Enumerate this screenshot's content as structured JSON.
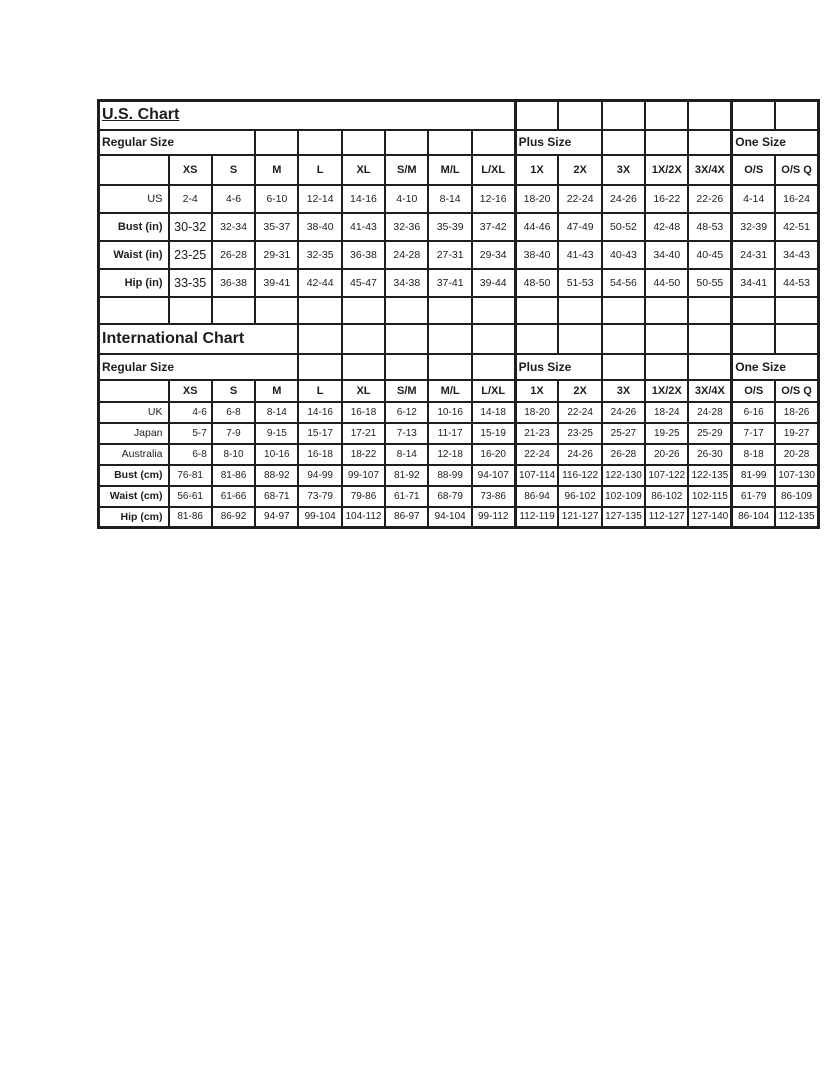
{
  "size_columns": [
    "XS",
    "S",
    "M",
    "L",
    "XL",
    "S/M",
    "M/L",
    "L/XL",
    "1X",
    "2X",
    "3X",
    "1X/2X",
    "3X/4X",
    "O/S",
    "O/S Q"
  ],
  "us_chart": {
    "title": "U.S. Chart",
    "group_labels": {
      "regular": "Regular Size",
      "plus": "Plus Size",
      "one": "One Size"
    },
    "rows": [
      {
        "label": "US",
        "kind": "region",
        "values": [
          "2-4",
          "4-6",
          "6-10",
          "12-14",
          "14-16",
          "4-10",
          "8-14",
          "12-16",
          "18-20",
          "22-24",
          "24-26",
          "16-22",
          "22-26",
          "4-14",
          "16-24"
        ]
      },
      {
        "label": "Bust (in)",
        "kind": "measurement",
        "values": [
          "30-32",
          "32-34",
          "35-37",
          "38-40",
          "41-43",
          "32-36",
          "35-39",
          "37-42",
          "44-46",
          "47-49",
          "50-52",
          "42-48",
          "48-53",
          "32-39",
          "42-51"
        ]
      },
      {
        "label": "Waist (in)",
        "kind": "measurement",
        "values": [
          "23-25",
          "26-28",
          "29-31",
          "32-35",
          "36-38",
          "24-28",
          "27-31",
          "29-34",
          "38-40",
          "41-43",
          "40-43",
          "34-40",
          "40-45",
          "24-31",
          "34-43"
        ]
      },
      {
        "label": "Hip (in)",
        "kind": "measurement",
        "values": [
          "33-35",
          "36-38",
          "39-41",
          "42-44",
          "45-47",
          "34-38",
          "37-41",
          "39-44",
          "48-50",
          "51-53",
          "54-56",
          "44-50",
          "50-55",
          "34-41",
          "44-53"
        ]
      }
    ]
  },
  "intl_chart": {
    "title": "International Chart",
    "group_labels": {
      "regular": "Regular Size",
      "plus": "Plus Size",
      "one": "One Size"
    },
    "rows": [
      {
        "label": "UK",
        "kind": "region",
        "values": [
          "4-6",
          "6-8",
          "8-14",
          "14-16",
          "16-18",
          "6-12",
          "10-16",
          "14-18",
          "18-20",
          "22-24",
          "24-26",
          "18-24",
          "24-28",
          "6-16",
          "18-26"
        ]
      },
      {
        "label": "Japan",
        "kind": "region",
        "values": [
          "5-7",
          "7-9",
          "9-15",
          "15-17",
          "17-21",
          "7-13",
          "11-17",
          "15-19",
          "21-23",
          "23-25",
          "25-27",
          "19-25",
          "25-29",
          "7-17",
          "19-27"
        ]
      },
      {
        "label": "Australia",
        "kind": "region",
        "values": [
          "6-8",
          "8-10",
          "10-16",
          "16-18",
          "18-22",
          "8-14",
          "12-18",
          "16-20",
          "22-24",
          "24-26",
          "26-28",
          "20-26",
          "26-30",
          "8-18",
          "20-28"
        ]
      },
      {
        "label": "Bust (cm)",
        "kind": "measurement",
        "values": [
          "76-81",
          "81-86",
          "88-92",
          "94-99",
          "99-107",
          "81-92",
          "88-99",
          "94-107",
          "107-114",
          "116-122",
          "122-130",
          "107-122",
          "122-135",
          "81-99",
          "107-130"
        ]
      },
      {
        "label": "Waist (cm)",
        "kind": "measurement",
        "values": [
          "56-61",
          "61-66",
          "68-71",
          "73-79",
          "79-86",
          "61-71",
          "68-79",
          "73-86",
          "86-94",
          "96-102",
          "102-109",
          "86-102",
          "102-115",
          "61-79",
          "86-109"
        ]
      },
      {
        "label": "Hip (cm)",
        "kind": "measurement",
        "values": [
          "81-86",
          "86-92",
          "94-97",
          "99-104",
          "104-112",
          "86-97",
          "94-104",
          "99-112",
          "112-119",
          "121-127",
          "127-135",
          "112-127",
          "127-140",
          "86-104",
          "112-135"
        ]
      }
    ]
  }
}
